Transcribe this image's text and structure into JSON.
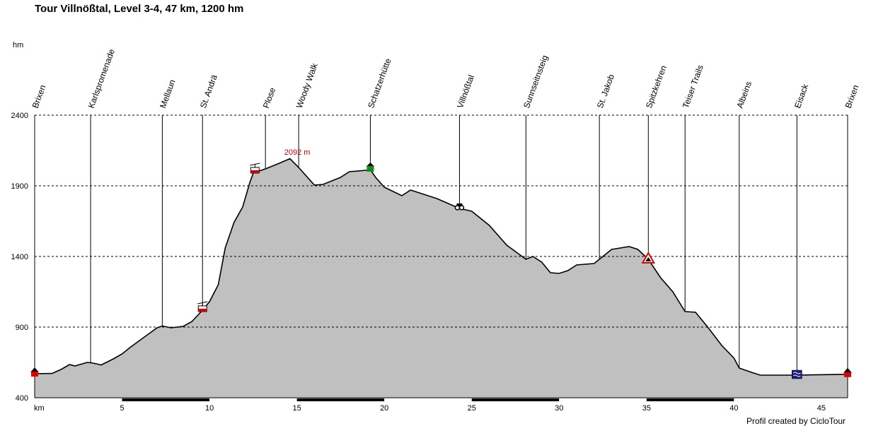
{
  "title": "Tour Villnößtal, Level 3-4, 47 km, 1200 hm",
  "credit": "Profil created by CicloTour",
  "chart_data": {
    "type": "area",
    "title": "Tour Villnößtal, Level 3-4, 47 km, 1200 hm",
    "xlabel": "km",
    "ylabel": "hm",
    "xlim": [
      0,
      46.5
    ],
    "ylim": [
      400,
      2400
    ],
    "x_ticks": [
      5,
      10,
      15,
      20,
      25,
      30,
      35,
      40,
      45
    ],
    "y_ticks": [
      400,
      900,
      1400,
      1900,
      2400
    ],
    "grid": true,
    "fill_color": "#c0c0c0",
    "line_color": "#000000",
    "max_label": {
      "x": 14.6,
      "value": 2092,
      "text": "2092 m",
      "color": "#cc0000"
    },
    "waypoints": [
      {
        "name": "Brixen",
        "km": 0.0
      },
      {
        "name": "Karlspromenade",
        "km": 3.2
      },
      {
        "name": "Mellaun",
        "km": 7.3
      },
      {
        "name": "St. Andrä",
        "km": 9.6
      },
      {
        "name": "Plose",
        "km": 13.2
      },
      {
        "name": "Woody Walk",
        "km": 15.1
      },
      {
        "name": "Schatzerhütte",
        "km": 19.2
      },
      {
        "name": "Villnößtal",
        "km": 24.3
      },
      {
        "name": "Sunnseitnsteig",
        "km": 28.1
      },
      {
        "name": "St. Jakob",
        "km": 32.3
      },
      {
        "name": "Spitzkehren",
        "km": 35.1
      },
      {
        "name": "Teiser Trails",
        "km": 37.2
      },
      {
        "name": "Albeins",
        "km": 40.3
      },
      {
        "name": "Eisack",
        "km": 43.6
      },
      {
        "name": "Brixen",
        "km": 46.5
      }
    ],
    "series": [
      {
        "values": [
          {
            "x": 0.0,
            "y": 570
          },
          {
            "x": 1.0,
            "y": 572
          },
          {
            "x": 1.5,
            "y": 600
          },
          {
            "x": 2.0,
            "y": 635
          },
          {
            "x": 2.3,
            "y": 625
          },
          {
            "x": 3.0,
            "y": 650
          },
          {
            "x": 3.2,
            "y": 648
          },
          {
            "x": 3.6,
            "y": 638
          },
          {
            "x": 3.8,
            "y": 632
          },
          {
            "x": 4.5,
            "y": 675
          },
          {
            "x": 5.0,
            "y": 710
          },
          {
            "x": 5.5,
            "y": 760
          },
          {
            "x": 6.0,
            "y": 805
          },
          {
            "x": 6.5,
            "y": 850
          },
          {
            "x": 7.0,
            "y": 895
          },
          {
            "x": 7.3,
            "y": 908
          },
          {
            "x": 7.8,
            "y": 895
          },
          {
            "x": 8.5,
            "y": 905
          },
          {
            "x": 9.0,
            "y": 940
          },
          {
            "x": 9.6,
            "y": 1020
          },
          {
            "x": 10.0,
            "y": 1080
          },
          {
            "x": 10.5,
            "y": 1200
          },
          {
            "x": 10.9,
            "y": 1460
          },
          {
            "x": 11.4,
            "y": 1640
          },
          {
            "x": 11.9,
            "y": 1750
          },
          {
            "x": 12.3,
            "y": 1920
          },
          {
            "x": 12.5,
            "y": 1990
          },
          {
            "x": 13.2,
            "y": 2020
          },
          {
            "x": 13.6,
            "y": 2040
          },
          {
            "x": 14.0,
            "y": 2060
          },
          {
            "x": 14.6,
            "y": 2092
          },
          {
            "x": 15.1,
            "y": 2030
          },
          {
            "x": 16.0,
            "y": 1905
          },
          {
            "x": 16.5,
            "y": 1910
          },
          {
            "x": 17.5,
            "y": 1960
          },
          {
            "x": 18.0,
            "y": 2000
          },
          {
            "x": 19.0,
            "y": 2010
          },
          {
            "x": 19.2,
            "y": 2015
          },
          {
            "x": 19.5,
            "y": 1960
          },
          {
            "x": 20.0,
            "y": 1890
          },
          {
            "x": 21.0,
            "y": 1830
          },
          {
            "x": 21.5,
            "y": 1870
          },
          {
            "x": 22.0,
            "y": 1850
          },
          {
            "x": 23.0,
            "y": 1810
          },
          {
            "x": 24.3,
            "y": 1740
          },
          {
            "x": 25.0,
            "y": 1720
          },
          {
            "x": 26.0,
            "y": 1620
          },
          {
            "x": 27.0,
            "y": 1480
          },
          {
            "x": 28.1,
            "y": 1380
          },
          {
            "x": 28.5,
            "y": 1400
          },
          {
            "x": 29.0,
            "y": 1360
          },
          {
            "x": 29.5,
            "y": 1285
          },
          {
            "x": 30.0,
            "y": 1280
          },
          {
            "x": 30.5,
            "y": 1300
          },
          {
            "x": 31.0,
            "y": 1340
          },
          {
            "x": 32.0,
            "y": 1350
          },
          {
            "x": 32.5,
            "y": 1400
          },
          {
            "x": 33.0,
            "y": 1450
          },
          {
            "x": 33.5,
            "y": 1460
          },
          {
            "x": 34.0,
            "y": 1470
          },
          {
            "x": 34.5,
            "y": 1450
          },
          {
            "x": 35.1,
            "y": 1380
          },
          {
            "x": 35.8,
            "y": 1250
          },
          {
            "x": 36.5,
            "y": 1150
          },
          {
            "x": 37.2,
            "y": 1010
          },
          {
            "x": 37.8,
            "y": 1005
          },
          {
            "x": 38.5,
            "y": 900
          },
          {
            "x": 39.3,
            "y": 770
          },
          {
            "x": 40.0,
            "y": 680
          },
          {
            "x": 40.3,
            "y": 610
          },
          {
            "x": 41.0,
            "y": 580
          },
          {
            "x": 41.5,
            "y": 560
          },
          {
            "x": 43.6,
            "y": 560
          },
          {
            "x": 46.5,
            "y": 566
          }
        ]
      }
    ],
    "icons": [
      {
        "name": "poi-start-house-icon",
        "km": 0.0,
        "value": 570
      },
      {
        "name": "gondola-icon",
        "km": 9.6,
        "value": 1020
      },
      {
        "name": "gondola-icon",
        "km": 12.6,
        "value": 2000
      },
      {
        "name": "hut-icon",
        "km": 19.2,
        "value": 2015
      },
      {
        "name": "binoculars-icon",
        "km": 24.3,
        "value": 1740
      },
      {
        "name": "warning-icon",
        "km": 35.1,
        "value": 1380
      },
      {
        "name": "water-icon",
        "km": 43.6,
        "value": 560
      },
      {
        "name": "poi-end-house-icon",
        "km": 46.5,
        "value": 566
      }
    ]
  }
}
